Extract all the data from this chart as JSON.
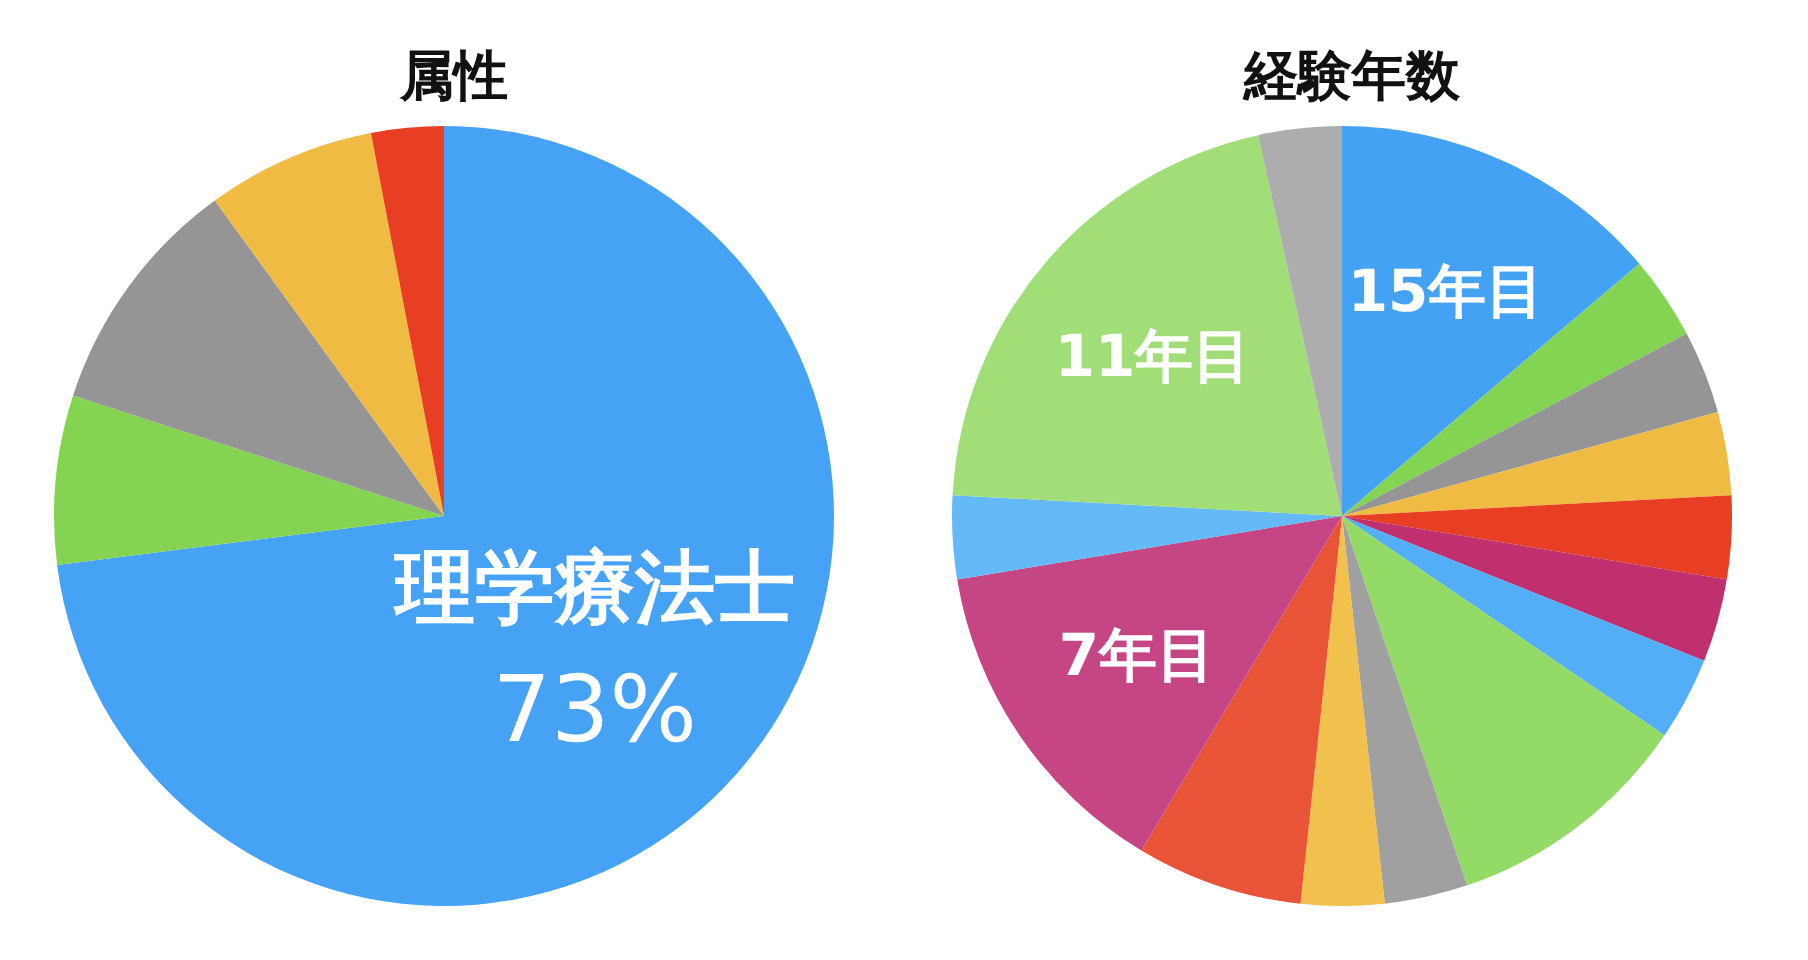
{
  "chart_data": [
    {
      "type": "pie",
      "title": "属性",
      "categories": [
        "理学療法士",
        null,
        null,
        null,
        null
      ],
      "values": [
        73,
        7,
        10,
        7,
        3
      ],
      "colors": [
        "#45a2f5",
        "#84d452",
        "#959595",
        "#f0bb43",
        "#e83e24"
      ],
      "value_labels": [
        "73%",
        null,
        null,
        null,
        null
      ]
    },
    {
      "type": "pie",
      "title": "経験年数",
      "categories": [
        "15年目",
        null,
        null,
        null,
        null,
        null,
        null,
        null,
        null,
        null,
        null,
        "7年目",
        null,
        "11年目",
        null
      ],
      "values": [
        13.8,
        3.45,
        3.45,
        3.45,
        3.45,
        3.45,
        3.45,
        10.3,
        3.45,
        3.45,
        6.9,
        13.8,
        3.45,
        20.7,
        3.45
      ],
      "colors": [
        "#44a2f5",
        "#82d452",
        "#959595",
        "#f0bb43",
        "#e83e24",
        "#c0306e",
        "#52aef6",
        "#93da66",
        "#a0a0a0",
        "#f0c24d",
        "#ea5436",
        "#c64585",
        "#64b9f7",
        "#a1de78",
        "#adadad"
      ]
    }
  ]
}
